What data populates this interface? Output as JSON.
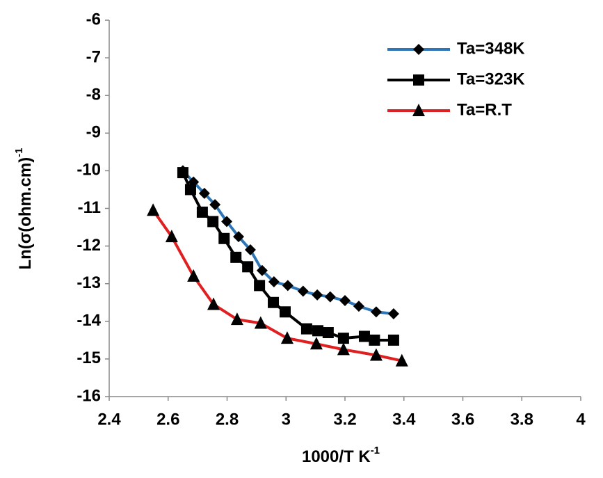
{
  "chart_data": {
    "type": "line",
    "x_label": "1000/T K",
    "x_label_sup": "-1",
    "y_label": "Ln(σ(ohm.cm)",
    "y_label_sup": "-1",
    "xlim": [
      2.4,
      4
    ],
    "xticks": [
      2.4,
      2.6,
      2.8,
      3,
      3.2,
      3.4,
      3.6,
      3.8,
      4
    ],
    "ylim": [
      -16,
      -6
    ],
    "yticks": [
      -16,
      -15,
      -14,
      -13,
      -12,
      -11,
      -10,
      -9,
      -8,
      -7,
      -6
    ],
    "grid": false,
    "legend": "top-right",
    "series": [
      {
        "name": "Ta=348K",
        "color": "#2e75b6",
        "marker": "diamond",
        "x": [
          2.65,
          2.686,
          2.723,
          2.759,
          2.799,
          2.839,
          2.879,
          2.919,
          2.959,
          3.006,
          3.058,
          3.106,
          3.15,
          3.2,
          3.247,
          3.306,
          3.365
        ],
        "values": [
          -10.0,
          -10.3,
          -10.6,
          -10.9,
          -11.35,
          -11.75,
          -12.1,
          -12.65,
          -12.95,
          -13.05,
          -13.2,
          -13.3,
          -13.35,
          -13.45,
          -13.6,
          -13.75,
          -13.8
        ]
      },
      {
        "name": "Ta=323K",
        "color": "#000000",
        "marker": "square",
        "x": [
          2.65,
          2.676,
          2.716,
          2.752,
          2.79,
          2.83,
          2.87,
          2.91,
          2.957,
          2.997,
          3.07,
          3.108,
          3.143,
          3.195,
          3.266,
          3.3,
          3.365
        ],
        "values": [
          -10.05,
          -10.5,
          -11.1,
          -11.35,
          -11.8,
          -12.3,
          -12.55,
          -13.05,
          -13.5,
          -13.75,
          -14.2,
          -14.25,
          -14.3,
          -14.45,
          -14.4,
          -14.5,
          -14.5
        ]
      },
      {
        "name": "Ta=R.T",
        "color": "#e02020",
        "marker": "triangle",
        "x": [
          2.549,
          2.612,
          2.686,
          2.754,
          2.834,
          2.914,
          3.004,
          3.103,
          3.195,
          3.306,
          3.393
        ],
        "values": [
          -11.05,
          -11.75,
          -12.8,
          -13.55,
          -13.95,
          -14.05,
          -14.45,
          -14.6,
          -14.75,
          -14.9,
          -15.05
        ]
      }
    ]
  }
}
